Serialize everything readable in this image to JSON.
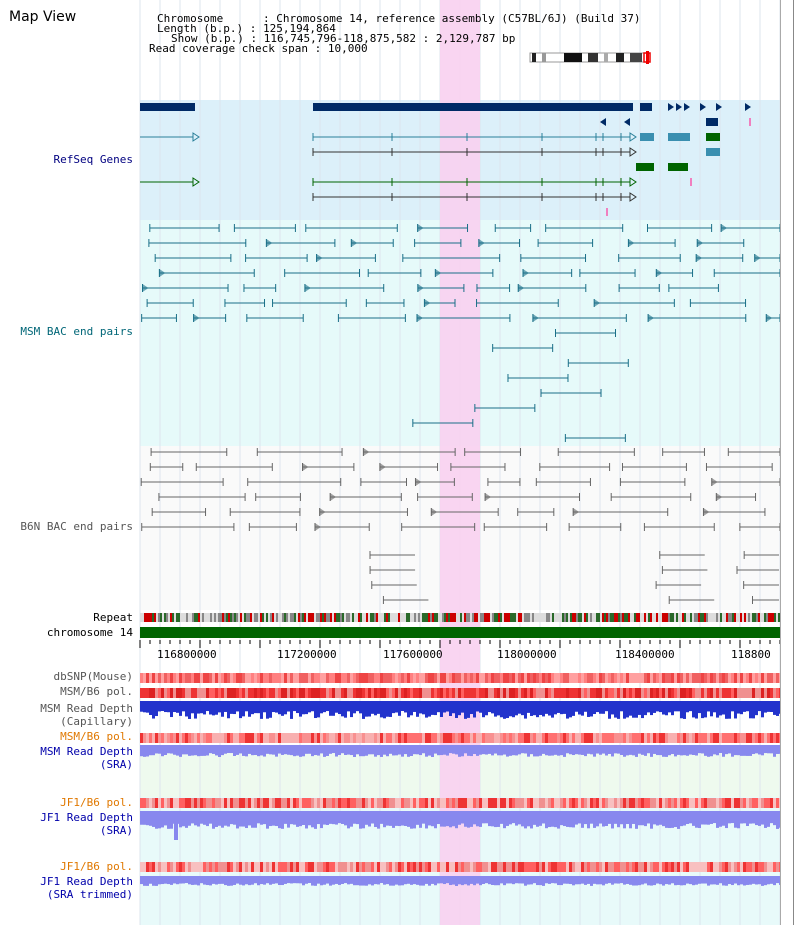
{
  "page_title": "Map View",
  "header": {
    "chromosome_key": "Chromosome",
    "chromosome_val": "Chromosome 14, reference assembly (C57BL/6J) (Build 37)",
    "length_key": "Length (b.p.)",
    "length_val": "125,194,864",
    "show_key": "Show (b.p.)",
    "show_val": "116,745,796-118,875,582 : 2,129,787 bp",
    "coverage_key": "Read coverage check span",
    "coverage_val": "10,000"
  },
  "tracks": {
    "refseq": "RefSeq Genes",
    "msm_bac": "MSM BAC end pairs",
    "b6n_bac": "B6N BAC end pairs",
    "repeat": "Repeat",
    "chromosome": "chromosome 14",
    "dbsnp": "dbSNP(Mouse)",
    "msm_b6_pol": "MSM/B6 pol.",
    "msm_depth_cap_1": "MSM Read Depth",
    "msm_depth_cap_2": "(Capillary)",
    "msm_b6_pol2": "MSM/B6 pol.",
    "msm_depth_sra_1": "MSM Read Depth",
    "msm_depth_sra_2": "(SRA)",
    "jf1_pol1": "JF1/B6 pol.",
    "jf1_depth_sra_1": "JF1 Read Depth",
    "jf1_depth_sra_2": "(SRA)",
    "jf1_pol2": "JF1/B6 pol.",
    "jf1_depth_trim_1": "JF1 Read Depth",
    "jf1_depth_trim_2": "(SRA trimmed)"
  },
  "axis_ticks": [
    "116800000",
    "117200000",
    "117600000",
    "118000000",
    "118400000",
    "118800"
  ],
  "colors": {
    "refseq_bg": "#dcf0fa",
    "bac_bg": "#e6fafa",
    "highlight": "#f8d0f0",
    "gene_dark": "#002a66",
    "gene_teal": "#2a7f99",
    "gene_green": "#006400",
    "chromosome": "#006400",
    "snp_red": "#ee3333",
    "depth_blue": "#2233cc",
    "depth_light": "#8888ee"
  }
}
